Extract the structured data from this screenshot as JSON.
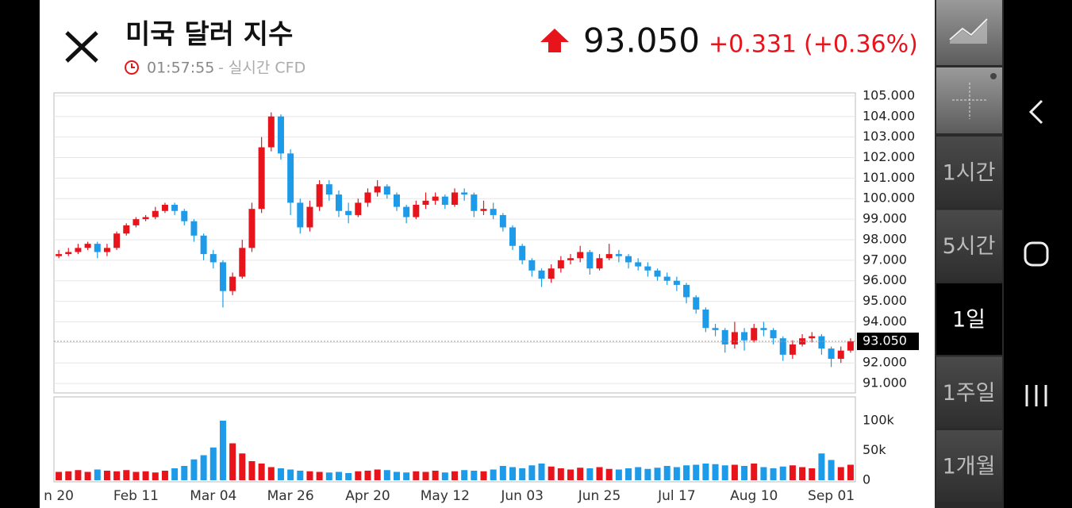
{
  "header": {
    "title": "미국 달러 지수",
    "time": "01:57:55",
    "source": "- 실시간 CFD",
    "price": "93.050",
    "change": "+0.331",
    "change_pct": "(+0.36%)"
  },
  "chart_data": [
    {
      "type": "candlestick",
      "up_color": "#e8141c",
      "down_color": "#1e9be8",
      "grid": true,
      "categories": [
        "n 20",
        null,
        null,
        null,
        null,
        null,
        null,
        null,
        "Feb 11",
        null,
        null,
        null,
        null,
        null,
        null,
        null,
        "Mar 04",
        null,
        null,
        null,
        null,
        null,
        null,
        null,
        "Mar 26",
        null,
        null,
        null,
        null,
        null,
        null,
        null,
        "Apr 20",
        null,
        null,
        null,
        null,
        null,
        null,
        null,
        "May 12",
        null,
        null,
        null,
        null,
        null,
        null,
        null,
        "Jun 03",
        null,
        null,
        null,
        null,
        null,
        null,
        null,
        "Jun 25",
        null,
        null,
        null,
        null,
        null,
        null,
        null,
        "Jul 17",
        null,
        null,
        null,
        null,
        null,
        null,
        null,
        "Aug 10",
        null,
        null,
        null,
        null,
        null,
        null,
        null,
        "Sep 01",
        null,
        null
      ],
      "open": [
        97.2,
        97.3,
        97.4,
        97.6,
        97.8,
        97.4,
        97.6,
        98.3,
        98.7,
        99.0,
        99.1,
        99.4,
        99.7,
        99.4,
        98.9,
        98.2,
        97.3,
        96.9,
        95.5,
        96.2,
        97.6,
        99.5,
        102.5,
        104.0,
        102.2,
        99.8,
        98.6,
        99.6,
        100.7,
        100.2,
        99.4,
        99.2,
        99.8,
        100.3,
        100.6,
        100.2,
        99.6,
        99.1,
        99.7,
        99.9,
        100.1,
        99.7,
        100.3,
        100.2,
        99.4,
        99.5,
        99.2,
        98.6,
        97.7,
        97.0,
        96.5,
        96.1,
        96.6,
        97.0,
        97.1,
        97.4,
        96.6,
        97.1,
        97.3,
        97.2,
        96.9,
        96.7,
        96.5,
        96.2,
        96.0,
        95.8,
        95.2,
        94.6,
        93.7,
        93.6,
        92.9,
        93.5,
        93.1,
        93.7,
        93.6,
        93.2,
        92.4,
        92.9,
        93.2,
        93.3,
        92.7,
        92.2,
        92.6
      ],
      "high": [
        97.5,
        97.6,
        97.8,
        97.9,
        97.9,
        97.8,
        98.4,
        98.8,
        99.1,
        99.2,
        99.6,
        99.8,
        99.8,
        99.5,
        99.0,
        98.3,
        97.5,
        97.0,
        96.4,
        98.0,
        99.8,
        103.0,
        104.2,
        104.1,
        102.4,
        100.0,
        99.9,
        100.9,
        100.9,
        100.4,
        99.8,
        100.0,
        100.5,
        100.9,
        100.7,
        100.3,
        99.7,
        99.9,
        100.3,
        100.3,
        100.2,
        100.5,
        100.5,
        100.3,
        99.9,
        99.8,
        99.3,
        98.7,
        97.8,
        97.1,
        96.6,
        96.8,
        97.2,
        97.3,
        97.7,
        97.5,
        97.3,
        97.8,
        97.5,
        97.3,
        97.1,
        96.9,
        96.6,
        96.4,
        96.2,
        95.9,
        95.3,
        94.7,
        93.9,
        93.7,
        94.0,
        93.7,
        93.9,
        94.0,
        93.7,
        93.3,
        93.1,
        93.4,
        93.5,
        93.4,
        92.8,
        92.8,
        93.2
      ],
      "low": [
        97.1,
        97.2,
        97.3,
        97.5,
        97.1,
        97.2,
        97.5,
        98.2,
        98.6,
        98.9,
        99.0,
        99.3,
        99.2,
        98.7,
        97.9,
        97.0,
        96.6,
        94.7,
        95.3,
        96.1,
        97.4,
        99.3,
        102.3,
        101.9,
        99.2,
        98.3,
        98.4,
        99.4,
        99.9,
        99.1,
        98.8,
        99.1,
        99.6,
        100.1,
        100.0,
        99.4,
        98.8,
        99.0,
        99.5,
        99.7,
        99.5,
        99.6,
        99.9,
        99.1,
        99.2,
        99.0,
        98.4,
        97.5,
        96.8,
        96.2,
        95.7,
        95.9,
        96.4,
        96.8,
        96.9,
        96.3,
        96.5,
        97.0,
        96.9,
        96.6,
        96.5,
        96.2,
        96.0,
        95.8,
        95.5,
        94.9,
        94.4,
        93.5,
        93.3,
        92.5,
        92.7,
        92.6,
        93.0,
        93.3,
        92.9,
        92.1,
        92.2,
        92.8,
        93.0,
        92.4,
        91.8,
        92.0,
        92.5
      ],
      "close": [
        97.3,
        97.4,
        97.6,
        97.8,
        97.4,
        97.6,
        98.3,
        98.7,
        99.0,
        99.1,
        99.4,
        99.7,
        99.4,
        98.9,
        98.2,
        97.3,
        96.9,
        95.5,
        96.2,
        97.6,
        99.5,
        102.5,
        104.0,
        102.2,
        99.8,
        98.6,
        99.6,
        100.7,
        100.2,
        99.4,
        99.2,
        99.8,
        100.3,
        100.6,
        100.2,
        99.6,
        99.1,
        99.7,
        99.9,
        100.1,
        99.7,
        100.3,
        100.2,
        99.4,
        99.5,
        99.2,
        98.6,
        97.7,
        97.0,
        96.5,
        96.1,
        96.6,
        97.0,
        97.1,
        97.4,
        96.6,
        97.1,
        97.3,
        97.2,
        96.9,
        96.7,
        96.5,
        96.2,
        96.0,
        95.8,
        95.2,
        94.6,
        93.7,
        93.6,
        92.9,
        93.5,
        93.1,
        93.7,
        93.6,
        93.2,
        92.4,
        92.9,
        93.2,
        93.3,
        92.7,
        92.2,
        92.6,
        93.05
      ],
      "ylim": [
        90.54,
        105.15
      ],
      "yticks": [
        {
          "value": 91,
          "label": "91.000"
        },
        {
          "value": 92,
          "label": "92.000"
        },
        {
          "value": 93,
          "label": "93.000"
        },
        {
          "value": 94,
          "label": "94.000"
        },
        {
          "value": 95,
          "label": "95.000"
        },
        {
          "value": 96,
          "label": "96.000"
        },
        {
          "value": 97,
          "label": "97.000"
        },
        {
          "value": 98,
          "label": "98.000"
        },
        {
          "value": 99,
          "label": "99.000"
        },
        {
          "value": 100,
          "label": "100.000"
        },
        {
          "value": 101,
          "label": "101.000"
        },
        {
          "value": 102,
          "label": "102.000"
        },
        {
          "value": 103,
          "label": "103.000"
        },
        {
          "value": 104,
          "label": "104.000"
        },
        {
          "value": 105,
          "label": "105.000"
        }
      ],
      "last": {
        "value": 93.05,
        "label": "93.050"
      }
    },
    {
      "type": "volume",
      "values": [
        14000,
        15000,
        17000,
        14000,
        18000,
        16000,
        15000,
        17000,
        14000,
        15000,
        13000,
        16000,
        20000,
        24000,
        35000,
        42000,
        55000,
        100000,
        62000,
        45000,
        32000,
        28000,
        22000,
        20000,
        18000,
        16000,
        15000,
        14000,
        13000,
        14000,
        12000,
        15000,
        16000,
        18000,
        17000,
        14000,
        13000,
        15000,
        14000,
        16000,
        13000,
        15000,
        17000,
        16000,
        15000,
        18000,
        24000,
        22000,
        20000,
        25000,
        28000,
        23000,
        20000,
        18000,
        21000,
        20000,
        22000,
        19000,
        18000,
        20000,
        22000,
        19000,
        21000,
        24000,
        22000,
        25000,
        26000,
        28000,
        27000,
        25000,
        26000,
        24000,
        28000,
        22000,
        20000,
        23000,
        25000,
        22000,
        20000,
        45000,
        34000,
        22000,
        26000
      ],
      "ylim": [
        0,
        140000
      ],
      "yticks": [
        0,
        {
          "value": 50000,
          "label": "50k"
        },
        {
          "value": 100000,
          "label": "100k"
        }
      ]
    }
  ],
  "sidebar": {
    "intervals": [
      "1시간",
      "5시간",
      "1일",
      "1주일",
      "1개월"
    ],
    "selected": 2
  }
}
